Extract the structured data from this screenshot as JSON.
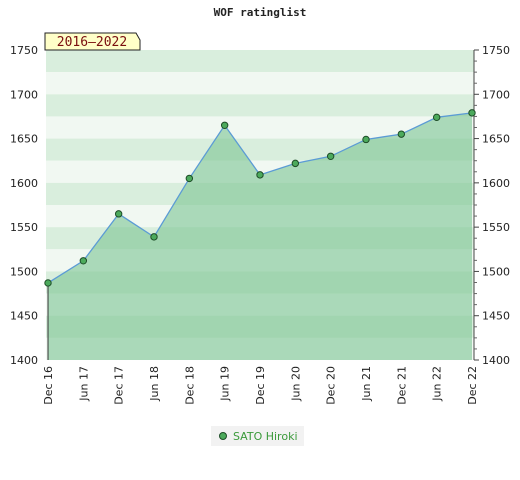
{
  "chart_data": {
    "type": "area",
    "title": "WOF ratinglist",
    "badge": "2016–2022",
    "x": [
      "Dec 16",
      "Jun 17",
      "Dec 17",
      "Jun 18",
      "Dec 18",
      "Jun 19",
      "Dec 19",
      "Jun 20",
      "Dec 20",
      "Jun 21",
      "Dec 21",
      "Jun 22",
      "Dec 22"
    ],
    "series": [
      {
        "name": "SATO Hiroki",
        "values": [
          1487,
          1512,
          1565,
          1539,
          1605,
          1665,
          1609,
          1622,
          1630,
          1649,
          1655,
          1674,
          1679
        ]
      }
    ],
    "ylim": [
      1400,
      1750
    ],
    "yticks": [
      1400,
      1450,
      1500,
      1550,
      1600,
      1650,
      1700,
      1750
    ],
    "grid": true,
    "legend_position": "bottom-center",
    "colors": {
      "line": "#5b9bd5",
      "marker": "#4caa5c",
      "fill": "#7cc592",
      "text_legend": "#3a9a3a"
    }
  }
}
